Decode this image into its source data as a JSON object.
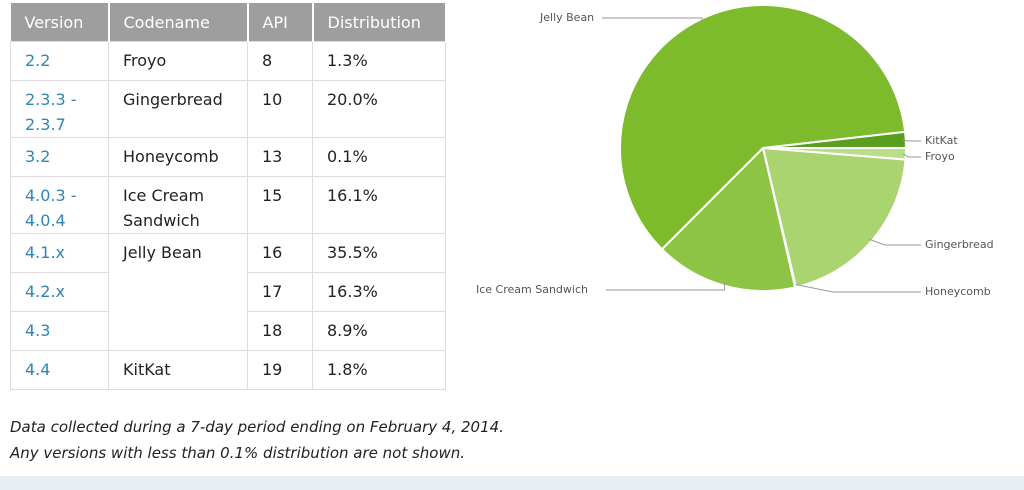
{
  "table": {
    "columns": [
      "Version",
      "Codename",
      "API",
      "Distribution"
    ],
    "rows": [
      {
        "version": "2.2",
        "codename": "Froyo",
        "api": "8",
        "distribution": "1.3%"
      },
      {
        "version": "2.3.3 - 2.3.7",
        "codename": "Gingerbread",
        "api": "10",
        "distribution": "20.0%"
      },
      {
        "version": "3.2",
        "codename": "Honeycomb",
        "api": "13",
        "distribution": "0.1%"
      },
      {
        "version": "4.0.3 - 4.0.4",
        "codename": "Ice Cream Sandwich",
        "api": "15",
        "distribution": "16.1%"
      },
      {
        "version": "4.1.x",
        "codename": "Jelly Bean",
        "api": "16",
        "distribution": "35.5%"
      },
      {
        "version": "4.2.x",
        "api": "17",
        "distribution": "16.3%"
      },
      {
        "version": "4.3",
        "api": "18",
        "distribution": "8.9%"
      },
      {
        "version": "4.4",
        "codename": "KitKat",
        "api": "19",
        "distribution": "1.8%"
      }
    ]
  },
  "footnote": [
    "Data collected during a 7-day period ending on February 4, 2014.",
    "Any versions with less than 0.1% distribution are not shown."
  ],
  "chart_data": {
    "type": "pie",
    "categories": [
      "KitKat",
      "Froyo",
      "Gingerbread",
      "Honeycomb",
      "Ice Cream Sandwich",
      "Jelly Bean"
    ],
    "values": [
      1.8,
      1.3,
      20.0,
      0.1,
      16.1,
      60.7
    ],
    "colors": [
      "#5a9e1f",
      "#b9df8b",
      "#a9d46f",
      "#c7e6a2",
      "#8dc444",
      "#7dbb2c"
    ]
  }
}
